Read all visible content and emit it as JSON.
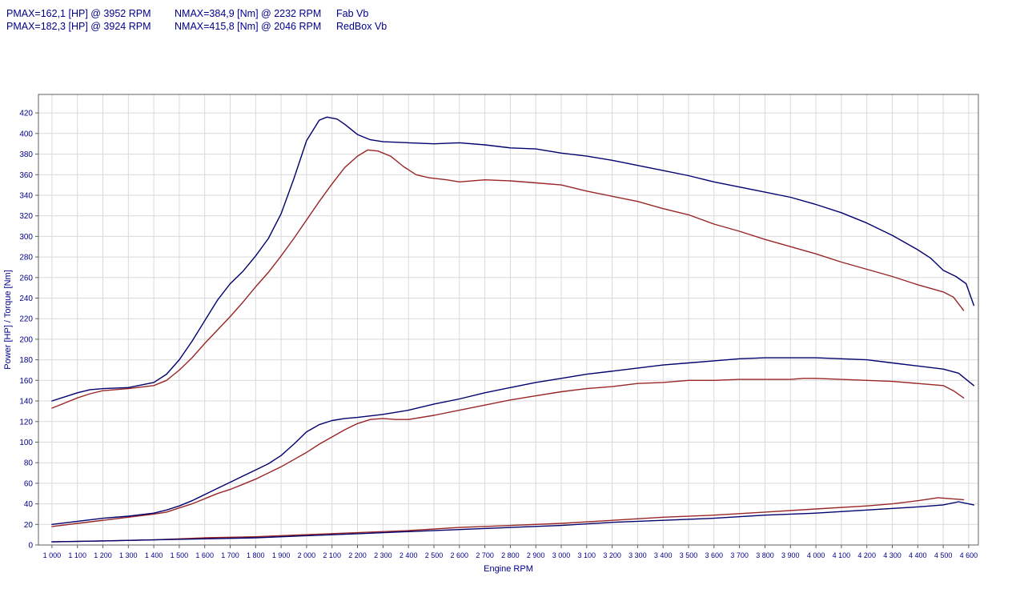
{
  "header": {
    "rows": [
      {
        "pmax": "PMAX=162,1 [HP] @ 3952 RPM",
        "nmax": "NMAX=384,9 [Nm] @ 2232 RPM",
        "label": "Fab Vb"
      },
      {
        "pmax": "PMAX=182,3 [HP] @ 3924 RPM",
        "nmax": "NMAX=415,8 [Nm] @ 2046 RPM",
        "label": "RedBox Vb"
      }
    ]
  },
  "chart_data": {
    "type": "line",
    "title": "",
    "xlabel": "Engine RPM",
    "ylabel": "Power [HP] / Torque [Nm]",
    "xlim": [
      947,
      4638
    ],
    "ylim": [
      0,
      438
    ],
    "grid": true,
    "legend_position": "none",
    "colors": {
      "redbox": "#00006e",
      "fab": "#992626",
      "grid": "#d9d9d9",
      "axis": "#606060",
      "text": "#00008b"
    },
    "y_ticks": [
      0,
      20,
      40,
      60,
      80,
      100,
      120,
      140,
      160,
      180,
      200,
      220,
      240,
      260,
      280,
      300,
      320,
      340,
      360,
      380,
      400,
      420
    ],
    "x_tick_labels": [
      "1 000",
      "1 100",
      "1 200",
      "1 300",
      "1 400",
      "1 500",
      "1 600",
      "1 700",
      "1 800",
      "1 900",
      "2 000",
      "2 100",
      "2 200",
      "2 300",
      "2 400",
      "2 500",
      "2 600",
      "2 700",
      "2 800",
      "2 900",
      "3 000",
      "3 100",
      "3 200",
      "3 300",
      "3 400",
      "3 500",
      "3 600",
      "3 700",
      "3 800",
      "3 900",
      "4 000",
      "4 100",
      "4 200",
      "4 300",
      "4 400",
      "4 500",
      "4 600"
    ],
    "series": [
      {
        "name": "Fab Vb torque [Nm]",
        "color_key": "fab",
        "points": [
          [
            1000,
            133
          ],
          [
            1050,
            138
          ],
          [
            1100,
            143
          ],
          [
            1150,
            147
          ],
          [
            1200,
            150
          ],
          [
            1300,
            152
          ],
          [
            1400,
            155
          ],
          [
            1450,
            160
          ],
          [
            1500,
            170
          ],
          [
            1550,
            182
          ],
          [
            1600,
            196
          ],
          [
            1650,
            209
          ],
          [
            1700,
            222
          ],
          [
            1750,
            236
          ],
          [
            1800,
            251
          ],
          [
            1850,
            265
          ],
          [
            1900,
            281
          ],
          [
            1950,
            298
          ],
          [
            2000,
            316
          ],
          [
            2050,
            334
          ],
          [
            2100,
            351
          ],
          [
            2150,
            367
          ],
          [
            2200,
            378
          ],
          [
            2240,
            384
          ],
          [
            2280,
            383
          ],
          [
            2330,
            378
          ],
          [
            2380,
            368
          ],
          [
            2430,
            360
          ],
          [
            2480,
            357
          ],
          [
            2550,
            355
          ],
          [
            2600,
            353
          ],
          [
            2700,
            355
          ],
          [
            2800,
            354
          ],
          [
            2900,
            352
          ],
          [
            3000,
            350
          ],
          [
            3100,
            344
          ],
          [
            3200,
            339
          ],
          [
            3300,
            334
          ],
          [
            3400,
            327
          ],
          [
            3500,
            321
          ],
          [
            3600,
            312
          ],
          [
            3700,
            305
          ],
          [
            3800,
            297
          ],
          [
            3900,
            290
          ],
          [
            4000,
            283
          ],
          [
            4100,
            275
          ],
          [
            4200,
            268
          ],
          [
            4300,
            261
          ],
          [
            4400,
            253
          ],
          [
            4500,
            246
          ],
          [
            4540,
            241
          ],
          [
            4580,
            228
          ]
        ]
      },
      {
        "name": "RedBox Vb torque [Nm]",
        "color_key": "redbox",
        "points": [
          [
            1000,
            140
          ],
          [
            1050,
            144
          ],
          [
            1100,
            148
          ],
          [
            1150,
            151
          ],
          [
            1200,
            152
          ],
          [
            1300,
            153
          ],
          [
            1400,
            158
          ],
          [
            1450,
            166
          ],
          [
            1500,
            180
          ],
          [
            1550,
            198
          ],
          [
            1600,
            218
          ],
          [
            1650,
            238
          ],
          [
            1700,
            254
          ],
          [
            1750,
            266
          ],
          [
            1800,
            281
          ],
          [
            1850,
            298
          ],
          [
            1900,
            322
          ],
          [
            1950,
            356
          ],
          [
            2000,
            393
          ],
          [
            2050,
            413
          ],
          [
            2080,
            416
          ],
          [
            2120,
            414
          ],
          [
            2150,
            409
          ],
          [
            2200,
            399
          ],
          [
            2250,
            394
          ],
          [
            2300,
            392
          ],
          [
            2400,
            391
          ],
          [
            2500,
            390
          ],
          [
            2600,
            391
          ],
          [
            2700,
            389
          ],
          [
            2800,
            386
          ],
          [
            2900,
            385
          ],
          [
            3000,
            381
          ],
          [
            3100,
            378
          ],
          [
            3200,
            374
          ],
          [
            3300,
            369
          ],
          [
            3400,
            364
          ],
          [
            3500,
            359
          ],
          [
            3600,
            353
          ],
          [
            3700,
            348
          ],
          [
            3800,
            343
          ],
          [
            3900,
            338
          ],
          [
            4000,
            331
          ],
          [
            4100,
            323
          ],
          [
            4200,
            313
          ],
          [
            4300,
            301
          ],
          [
            4400,
            287
          ],
          [
            4450,
            279
          ],
          [
            4500,
            267
          ],
          [
            4550,
            261
          ],
          [
            4590,
            254
          ],
          [
            4620,
            233
          ]
        ]
      },
      {
        "name": "Fab Vb power [HP]",
        "color_key": "fab",
        "points": [
          [
            1000,
            18
          ],
          [
            1100,
            21
          ],
          [
            1200,
            24
          ],
          [
            1300,
            27
          ],
          [
            1400,
            30
          ],
          [
            1450,
            32
          ],
          [
            1500,
            36
          ],
          [
            1550,
            40
          ],
          [
            1600,
            45
          ],
          [
            1650,
            50
          ],
          [
            1700,
            54
          ],
          [
            1750,
            59
          ],
          [
            1800,
            64
          ],
          [
            1850,
            70
          ],
          [
            1900,
            76
          ],
          [
            1950,
            83
          ],
          [
            2000,
            90
          ],
          [
            2050,
            98
          ],
          [
            2100,
            105
          ],
          [
            2150,
            112
          ],
          [
            2200,
            118
          ],
          [
            2250,
            122
          ],
          [
            2300,
            123
          ],
          [
            2350,
            122
          ],
          [
            2400,
            122
          ],
          [
            2500,
            126
          ],
          [
            2600,
            131
          ],
          [
            2700,
            136
          ],
          [
            2800,
            141
          ],
          [
            2900,
            145
          ],
          [
            3000,
            149
          ],
          [
            3100,
            152
          ],
          [
            3200,
            154
          ],
          [
            3300,
            157
          ],
          [
            3400,
            158
          ],
          [
            3500,
            160
          ],
          [
            3600,
            160
          ],
          [
            3700,
            161
          ],
          [
            3800,
            161
          ],
          [
            3900,
            161
          ],
          [
            3950,
            162
          ],
          [
            4000,
            162
          ],
          [
            4100,
            161
          ],
          [
            4200,
            160
          ],
          [
            4300,
            159
          ],
          [
            4400,
            157
          ],
          [
            4500,
            155
          ],
          [
            4540,
            150
          ],
          [
            4580,
            143
          ]
        ]
      },
      {
        "name": "RedBox Vb power [HP]",
        "color_key": "redbox",
        "points": [
          [
            1000,
            20
          ],
          [
            1100,
            23
          ],
          [
            1200,
            26
          ],
          [
            1300,
            28
          ],
          [
            1400,
            31
          ],
          [
            1450,
            34
          ],
          [
            1500,
            38
          ],
          [
            1550,
            43
          ],
          [
            1600,
            49
          ],
          [
            1650,
            55
          ],
          [
            1700,
            61
          ],
          [
            1750,
            67
          ],
          [
            1800,
            73
          ],
          [
            1850,
            79
          ],
          [
            1900,
            87
          ],
          [
            1950,
            98
          ],
          [
            2000,
            110
          ],
          [
            2050,
            117
          ],
          [
            2100,
            121
          ],
          [
            2150,
            123
          ],
          [
            2200,
            124
          ],
          [
            2300,
            127
          ],
          [
            2400,
            131
          ],
          [
            2500,
            137
          ],
          [
            2600,
            142
          ],
          [
            2700,
            148
          ],
          [
            2800,
            153
          ],
          [
            2900,
            158
          ],
          [
            3000,
            162
          ],
          [
            3100,
            166
          ],
          [
            3200,
            169
          ],
          [
            3300,
            172
          ],
          [
            3400,
            175
          ],
          [
            3500,
            177
          ],
          [
            3600,
            179
          ],
          [
            3700,
            181
          ],
          [
            3800,
            182
          ],
          [
            3900,
            182
          ],
          [
            4000,
            182
          ],
          [
            4100,
            181
          ],
          [
            4200,
            180
          ],
          [
            4300,
            177
          ],
          [
            4400,
            174
          ],
          [
            4500,
            171
          ],
          [
            4560,
            167
          ],
          [
            4620,
            155
          ]
        ]
      },
      {
        "name": "Fab Vb baseline",
        "color_key": "fab",
        "points": [
          [
            1000,
            3
          ],
          [
            1200,
            4
          ],
          [
            1400,
            5
          ],
          [
            1600,
            7
          ],
          [
            1800,
            8
          ],
          [
            2000,
            10
          ],
          [
            2200,
            12
          ],
          [
            2400,
            14
          ],
          [
            2600,
            17
          ],
          [
            2800,
            19
          ],
          [
            3000,
            21
          ],
          [
            3200,
            24
          ],
          [
            3400,
            27
          ],
          [
            3600,
            29
          ],
          [
            3800,
            32
          ],
          [
            4000,
            35
          ],
          [
            4200,
            38
          ],
          [
            4300,
            40
          ],
          [
            4400,
            43
          ],
          [
            4480,
            46
          ],
          [
            4580,
            44
          ]
        ]
      },
      {
        "name": "RedBox Vb baseline",
        "color_key": "redbox",
        "points": [
          [
            1000,
            3
          ],
          [
            1200,
            4
          ],
          [
            1400,
            5
          ],
          [
            1600,
            6
          ],
          [
            1800,
            7
          ],
          [
            2000,
            9
          ],
          [
            2200,
            11
          ],
          [
            2400,
            13
          ],
          [
            2600,
            15
          ],
          [
            2800,
            17
          ],
          [
            3000,
            19
          ],
          [
            3200,
            22
          ],
          [
            3400,
            24
          ],
          [
            3600,
            26
          ],
          [
            3800,
            29
          ],
          [
            4000,
            31
          ],
          [
            4200,
            34
          ],
          [
            4400,
            37
          ],
          [
            4500,
            39
          ],
          [
            4560,
            42
          ],
          [
            4620,
            39
          ]
        ]
      }
    ]
  }
}
